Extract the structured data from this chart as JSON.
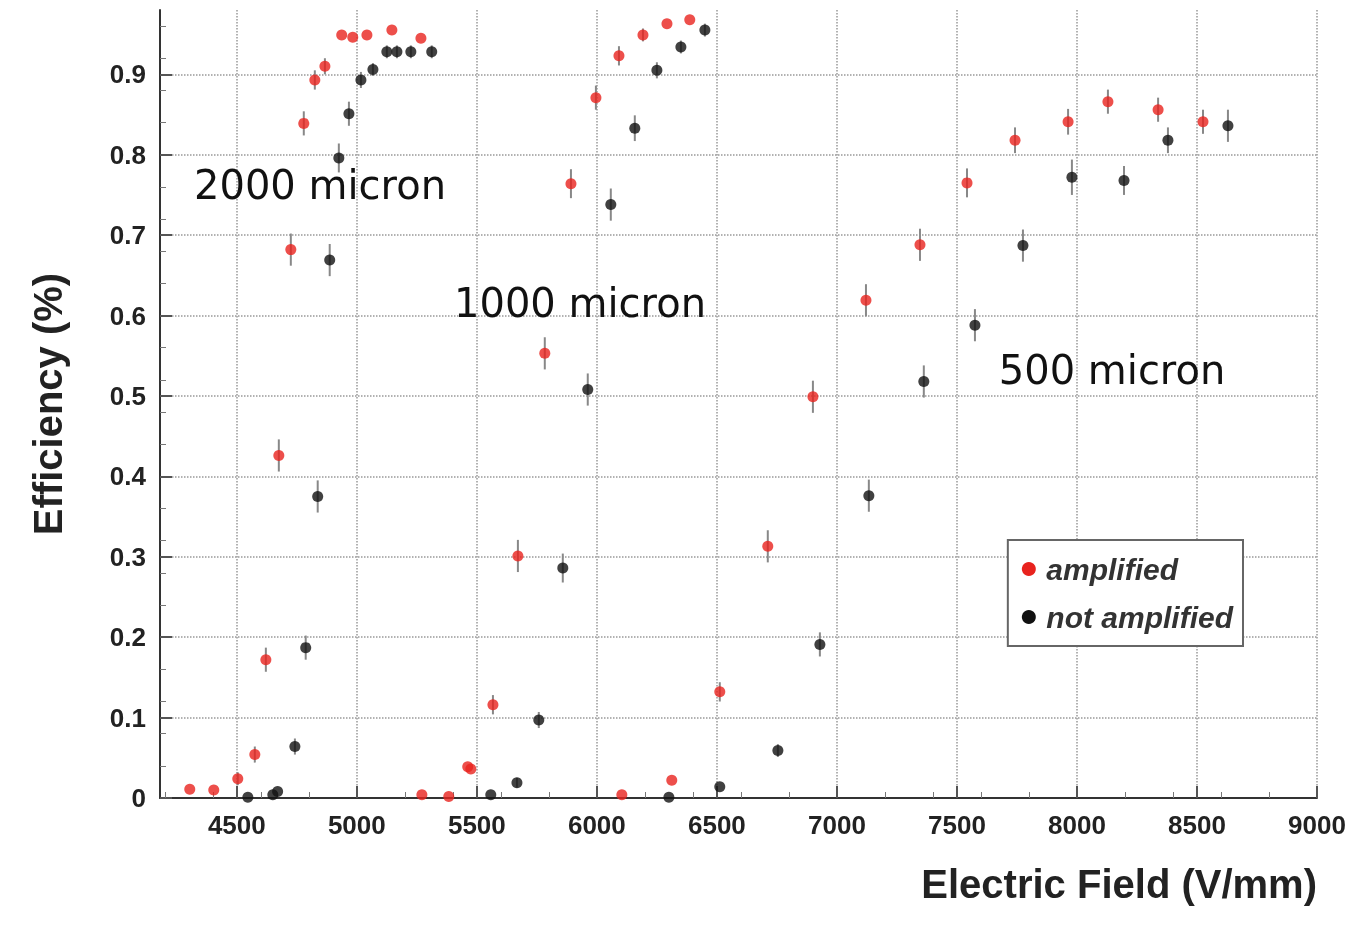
{
  "chart_data": {
    "type": "scatter",
    "xlabel": "Electric Field (V/mm)",
    "ylabel": "Efficiency (%)",
    "xlim": [
      4180,
      9000
    ],
    "xticks": [
      4500,
      5000,
      5500,
      6000,
      6500,
      7000,
      7500,
      8000,
      8500,
      9000
    ],
    "ylim": [
      0,
      0.98
    ],
    "yticks": [
      0,
      0.1,
      0.2,
      0.3,
      0.4,
      0.5,
      0.6,
      0.7,
      0.8,
      0.9
    ],
    "grid": true,
    "legend": "right",
    "marker": "circle",
    "annotations": [
      "2000 micron",
      "1000 micron",
      "500 micron"
    ],
    "series": [
      {
        "name": "amplified",
        "color": "#e8231e",
        "x": [
          4304,
          4404,
          4504,
          4575,
          4621,
          4675,
          4725,
          4779,
          4825,
          4867,
          4937,
          4983,
          5042,
          5146,
          5267,
          5271,
          5383,
          5462,
          5475,
          5567,
          5671,
          5783,
          5892,
          5996,
          6092,
          6104,
          6192,
          6292,
          6312,
          6387,
          6512,
          6712,
          6900,
          7121,
          7346,
          7542,
          7742,
          7963,
          8129,
          8338,
          8525
        ],
        "values": [
          0.011,
          0.01,
          0.024,
          0.054,
          0.172,
          0.426,
          0.682,
          0.839,
          0.893,
          0.91,
          0.949,
          0.946,
          0.949,
          0.955,
          0.945,
          0.004,
          0.002,
          0.039,
          0.036,
          0.116,
          0.301,
          0.553,
          0.764,
          0.871,
          0.923,
          0.004,
          0.949,
          0.963,
          0.022,
          0.968,
          0.132,
          0.313,
          0.499,
          0.619,
          0.688,
          0.765,
          0.818,
          0.841,
          0.866,
          0.856,
          0.841
        ],
        "errors": [
          null,
          null,
          0.008,
          0.01,
          0.015,
          0.02,
          0.02,
          0.015,
          0.012,
          0.01,
          null,
          null,
          null,
          null,
          null,
          null,
          null,
          null,
          null,
          0.012,
          0.02,
          0.02,
          0.018,
          0.015,
          0.012,
          null,
          0.008,
          null,
          null,
          null,
          0.012,
          0.02,
          0.02,
          0.02,
          0.02,
          0.018,
          0.016,
          0.016,
          0.015,
          0.015,
          0.015
        ]
      },
      {
        "name": "not amplified",
        "color": "#111111",
        "x": [
          4546,
          4650,
          4670,
          4742,
          4787,
          4837,
          4887,
          4925,
          4967,
          5017,
          5067,
          5125,
          5167,
          5225,
          5312,
          5558,
          5667,
          5758,
          5858,
          5962,
          6058,
          6158,
          6250,
          6300,
          6350,
          6450,
          6512,
          6754,
          6929,
          7133,
          7362,
          7575,
          7775,
          7979,
          8196,
          8379,
          8629
        ],
        "values": [
          0.001,
          0.004,
          0.008,
          0.064,
          0.187,
          0.375,
          0.669,
          0.796,
          0.851,
          0.893,
          0.906,
          0.928,
          0.928,
          0.928,
          0.928,
          0.004,
          0.019,
          0.097,
          0.286,
          0.508,
          0.738,
          0.833,
          0.905,
          0.001,
          0.934,
          0.955,
          0.014,
          0.059,
          0.191,
          0.376,
          0.518,
          0.588,
          0.687,
          0.772,
          0.768,
          0.818,
          0.836
        ],
        "errors": [
          null,
          null,
          null,
          0.01,
          0.015,
          0.02,
          0.02,
          0.018,
          0.015,
          0.01,
          0.008,
          0.008,
          0.008,
          0.008,
          0.008,
          null,
          0.006,
          0.01,
          0.018,
          0.02,
          0.02,
          0.016,
          0.01,
          null,
          0.008,
          0.008,
          null,
          0.008,
          0.015,
          0.02,
          0.02,
          0.02,
          0.02,
          0.022,
          0.018,
          0.016,
          0.02
        ]
      }
    ]
  }
}
